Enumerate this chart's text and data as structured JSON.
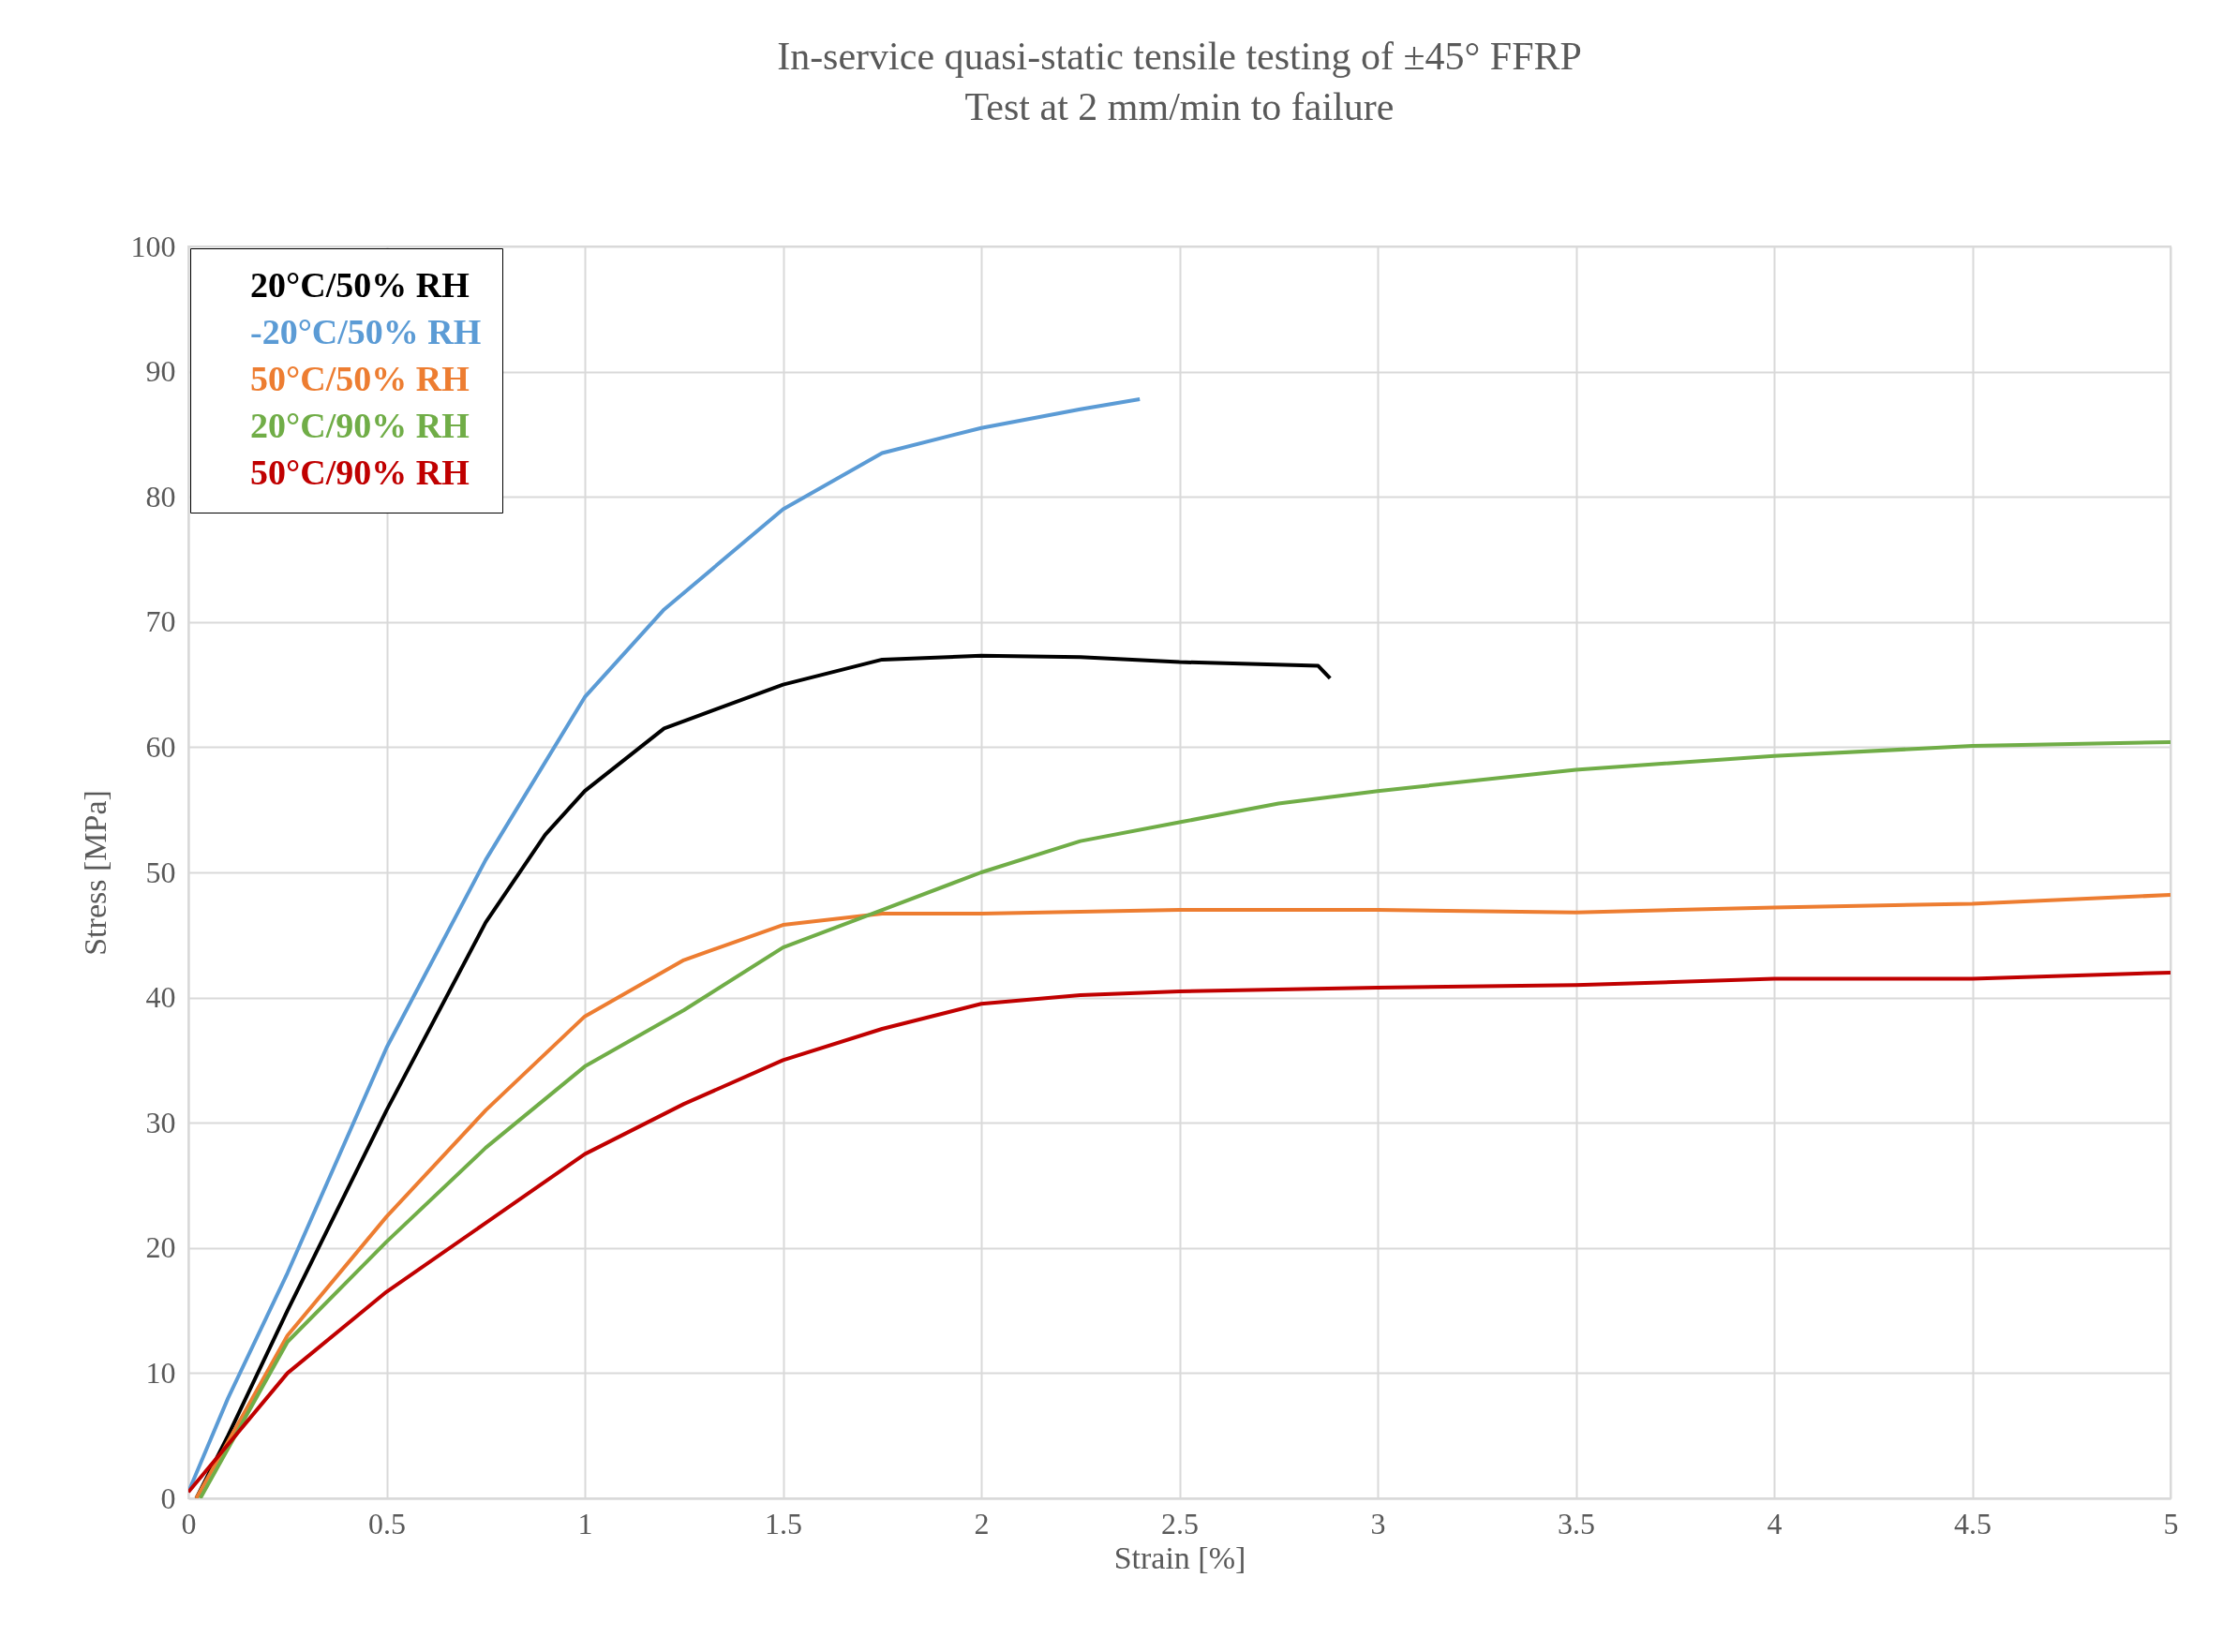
{
  "chart_data": {
    "type": "line",
    "title": "In-service quasi-static tensile testing of ±45° FFRP",
    "subtitle": "Test at 2 mm/min to failure",
    "xlabel": "Strain [%]",
    "ylabel": "Stress [MPa]",
    "xlim": [
      0,
      5
    ],
    "ylim": [
      0,
      100
    ],
    "xticks": [
      0,
      0.5,
      1,
      1.5,
      2,
      2.5,
      3,
      3.5,
      4,
      4.5,
      5
    ],
    "yticks": [
      0,
      10,
      20,
      30,
      40,
      50,
      60,
      70,
      80,
      90,
      100
    ],
    "grid": true,
    "legend": "top left",
    "marker": "none",
    "line_style": "solid",
    "series": [
      {
        "name": "20°C/50% RH",
        "color": "#000000",
        "x": [
          0.02,
          0.1,
          0.25,
          0.5,
          0.75,
          0.9,
          1.0,
          1.2,
          1.5,
          1.75,
          2.0,
          2.25,
          2.5,
          2.85,
          2.88
        ],
        "values": [
          0,
          5,
          15,
          31,
          46,
          53,
          56.5,
          61.5,
          65,
          67,
          67.3,
          67.2,
          66.8,
          66.5,
          65.5
        ]
      },
      {
        "name": "-20°C/50% RH",
        "color": "#5b9bd5",
        "x": [
          0,
          0.1,
          0.25,
          0.5,
          0.75,
          1.0,
          1.2,
          1.5,
          1.75,
          2.0,
          2.25,
          2.4
        ],
        "values": [
          0.5,
          8,
          18,
          36,
          51,
          64,
          71,
          79,
          83.5,
          85.5,
          87,
          87.8
        ]
      },
      {
        "name": "50°C/50% RH",
        "color": "#ed7d31",
        "x": [
          0.02,
          0.25,
          0.5,
          0.75,
          1.0,
          1.25,
          1.5,
          1.75,
          2.0,
          2.5,
          3.0,
          3.5,
          4.0,
          4.5,
          5.0
        ],
        "values": [
          0,
          13,
          22.5,
          31,
          38.5,
          43,
          45.8,
          46.7,
          46.7,
          47,
          47,
          46.8,
          47.2,
          47.5,
          48.2
        ]
      },
      {
        "name": "20°C/90% RH",
        "color": "#70ad47",
        "x": [
          0.03,
          0.25,
          0.5,
          0.75,
          1.0,
          1.25,
          1.5,
          1.75,
          2.0,
          2.25,
          2.5,
          2.75,
          3.0,
          3.5,
          4.0,
          4.5,
          5.0
        ],
        "values": [
          0,
          12.5,
          20.5,
          28,
          34.5,
          39,
          44,
          47,
          50,
          52.5,
          54,
          55.5,
          56.5,
          58.2,
          59.3,
          60.1,
          60.4
        ]
      },
      {
        "name": "50°C/90% RH",
        "color": "#c00000",
        "x": [
          0,
          0.25,
          0.5,
          0.75,
          1.0,
          1.25,
          1.5,
          1.75,
          2.0,
          2.25,
          2.5,
          3.0,
          3.5,
          4.0,
          4.5,
          5.0
        ],
        "values": [
          0.5,
          10,
          16.5,
          22,
          27.5,
          31.5,
          35,
          37.5,
          39.5,
          40.2,
          40.5,
          40.8,
          41,
          41.5,
          41.5,
          42
        ]
      }
    ]
  }
}
